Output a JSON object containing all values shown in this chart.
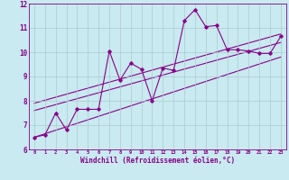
{
  "xlabel": "Windchill (Refroidissement éolien,°C)",
  "bg_color": "#c8eaf0",
  "grid_color": "#b0c8d0",
  "line_color": "#880088",
  "xlim": [
    -0.5,
    23.5
  ],
  "ylim": [
    6,
    12
  ],
  "x_ticks": [
    0,
    1,
    2,
    3,
    4,
    5,
    6,
    7,
    8,
    9,
    10,
    11,
    12,
    13,
    14,
    15,
    16,
    17,
    18,
    19,
    20,
    21,
    22,
    23
  ],
  "y_ticks": [
    6,
    7,
    8,
    9,
    10,
    11,
    12
  ],
  "series1_x": [
    0,
    1,
    2,
    3,
    4,
    5,
    6,
    7,
    8,
    9,
    10,
    11,
    12,
    13,
    14,
    15,
    16,
    17,
    18,
    19,
    20,
    21,
    22,
    23
  ],
  "series1_y": [
    6.5,
    6.6,
    7.5,
    6.8,
    7.65,
    7.65,
    7.65,
    10.05,
    8.85,
    9.55,
    9.3,
    8.0,
    9.35,
    9.25,
    11.3,
    11.75,
    11.05,
    11.1,
    10.1,
    10.1,
    10.05,
    9.95,
    9.95,
    10.65
  ],
  "line1_x": [
    0,
    23
  ],
  "line1_y": [
    6.5,
    9.8
  ],
  "line2_x": [
    0,
    23
  ],
  "line2_y": [
    7.6,
    10.4
  ],
  "line3_x": [
    0,
    23
  ],
  "line3_y": [
    7.9,
    10.75
  ]
}
